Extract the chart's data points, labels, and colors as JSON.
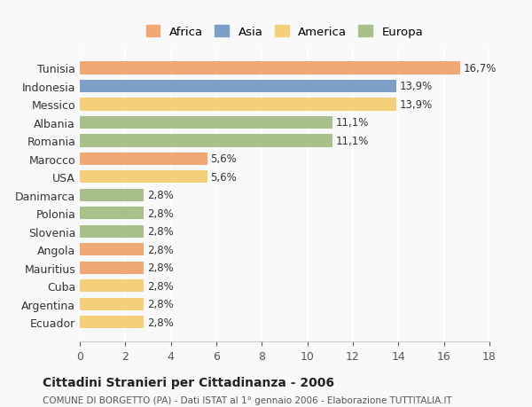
{
  "countries": [
    "Tunisia",
    "Indonesia",
    "Messico",
    "Albania",
    "Romania",
    "Marocco",
    "USA",
    "Danimarca",
    "Polonia",
    "Slovenia",
    "Angola",
    "Mauritius",
    "Cuba",
    "Argentina",
    "Ecuador"
  ],
  "values": [
    16.7,
    13.9,
    13.9,
    11.1,
    11.1,
    5.6,
    5.6,
    2.8,
    2.8,
    2.8,
    2.8,
    2.8,
    2.8,
    2.8,
    2.8
  ],
  "labels": [
    "16,7%",
    "13,9%",
    "13,9%",
    "11,1%",
    "11,1%",
    "5,6%",
    "5,6%",
    "2,8%",
    "2,8%",
    "2,8%",
    "2,8%",
    "2,8%",
    "2,8%",
    "2,8%",
    "2,8%"
  ],
  "categories": [
    "Africa",
    "Asia",
    "America",
    "Europa"
  ],
  "continent": [
    "Africa",
    "Asia",
    "America",
    "Europa",
    "Europa",
    "Africa",
    "America",
    "Europa",
    "Europa",
    "Europa",
    "Africa",
    "Africa",
    "America",
    "America",
    "America"
  ],
  "colors": {
    "Africa": "#F0A875",
    "Asia": "#7B9FC7",
    "America": "#F5D07A",
    "Europa": "#A8C08A"
  },
  "legend_colors": [
    "#F0A875",
    "#7B9FC7",
    "#F5D07A",
    "#A8C08A"
  ],
  "title": "Cittadini Stranieri per Cittadinanza - 2006",
  "subtitle": "COMUNE DI BORGETTO (PA) - Dati ISTAT al 1° gennaio 2006 - Elaborazione TUTTITALIA.IT",
  "xlim": [
    0,
    18
  ],
  "xticks": [
    0,
    2,
    4,
    6,
    8,
    10,
    12,
    14,
    16,
    18
  ],
  "background_color": "#f9f9f9",
  "grid_color": "#ffffff"
}
